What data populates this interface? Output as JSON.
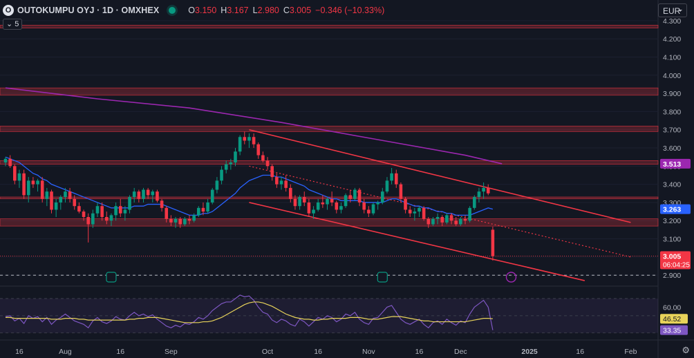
{
  "header": {
    "logo_glyph": "O",
    "symbol": "OUTOKUMPU OYJ · 1D · OMXHEX",
    "open_label": "O",
    "open": "3.150",
    "high_label": "H",
    "high": "3.167",
    "low_label": "L",
    "low": "2.980",
    "close_label": "C",
    "close": "3.005",
    "change": "−0.346 (−10.33%)"
  },
  "collapse_count": "5",
  "currency": "EUR",
  "settings_icon": "gear-icon",
  "colors": {
    "up": "#089981",
    "down": "#f23645",
    "ma": "#2962ff",
    "ma200": "#9c27b0",
    "rsi": "#7e57c2",
    "rsi_ma": "#e8d35a"
  },
  "chart_data": {
    "type": "candlestick",
    "y_ticks": [
      "4.300",
      "4.200",
      "4.100",
      "4.000",
      "3.900",
      "3.800",
      "3.700",
      "3.600",
      "3.500",
      "3.400",
      "3.300",
      "3.200",
      "3.100",
      "3.000",
      "2.900"
    ],
    "x_ticks": [
      {
        "label": "16",
        "i": 3
      },
      {
        "label": "Aug",
        "i": 13
      },
      {
        "label": "16",
        "i": 25
      },
      {
        "label": "Sep",
        "i": 36
      },
      {
        "label": "Oct",
        "i": 57
      },
      {
        "label": "16",
        "i": 68
      },
      {
        "label": "Nov",
        "i": 79
      },
      {
        "label": "16",
        "i": 90
      },
      {
        "label": "Dec",
        "i": 99
      },
      {
        "label": "2025",
        "i": 114
      },
      {
        "label": "16",
        "i": 125
      },
      {
        "label": "Feb",
        "i": 136
      }
    ],
    "price_labels": [
      {
        "value": 3.513,
        "text": "3.513",
        "color": "#9c27b0"
      },
      {
        "value": 3.263,
        "text": "3.263",
        "color": "#2962ff"
      },
      {
        "value": 3.005,
        "text": "3.005",
        "sub": "06:04:25",
        "color": "#f23645"
      }
    ],
    "rsi_labels": [
      {
        "value": 60,
        "text": "60.00",
        "color": "#131722"
      },
      {
        "value": 46.52,
        "text": "46.52",
        "color": "#e8d35a"
      },
      {
        "value": 33.35,
        "text": "33.35",
        "color": "#7e57c2"
      }
    ],
    "zones": [
      [
        4.26,
        4.275
      ],
      [
        3.89,
        3.93
      ],
      [
        3.69,
        3.72
      ],
      [
        3.51,
        3.53
      ],
      [
        3.32,
        3.33
      ],
      [
        3.17,
        3.21
      ]
    ],
    "candles": [
      [
        3.52,
        3.55,
        3.5,
        3.54
      ],
      [
        3.54,
        3.56,
        3.49,
        3.5
      ],
      [
        3.5,
        3.51,
        3.4,
        3.42
      ],
      [
        3.42,
        3.48,
        3.38,
        3.46
      ],
      [
        3.46,
        3.48,
        3.32,
        3.34
      ],
      [
        3.34,
        3.44,
        3.3,
        3.42
      ],
      [
        3.42,
        3.44,
        3.38,
        3.4
      ],
      [
        3.4,
        3.43,
        3.36,
        3.42
      ],
      [
        3.42,
        3.44,
        3.3,
        3.32
      ],
      [
        3.32,
        3.38,
        3.28,
        3.36
      ],
      [
        3.36,
        3.37,
        3.24,
        3.26
      ],
      [
        3.26,
        3.32,
        3.22,
        3.3
      ],
      [
        3.3,
        3.34,
        3.26,
        3.33
      ],
      [
        3.33,
        3.38,
        3.3,
        3.36
      ],
      [
        3.36,
        3.38,
        3.3,
        3.32
      ],
      [
        3.32,
        3.34,
        3.26,
        3.28
      ],
      [
        3.28,
        3.3,
        3.24,
        3.25
      ],
      [
        3.25,
        3.26,
        3.2,
        3.22
      ],
      [
        3.22,
        3.24,
        3.08,
        3.18
      ],
      [
        3.18,
        3.26,
        3.16,
        3.24
      ],
      [
        3.24,
        3.3,
        3.22,
        3.28
      ],
      [
        3.28,
        3.3,
        3.2,
        3.22
      ],
      [
        3.22,
        3.25,
        3.18,
        3.2
      ],
      [
        3.2,
        3.24,
        3.17,
        3.23
      ],
      [
        3.23,
        3.3,
        3.2,
        3.28
      ],
      [
        3.28,
        3.32,
        3.22,
        3.24
      ],
      [
        3.24,
        3.28,
        3.2,
        3.26
      ],
      [
        3.26,
        3.34,
        3.24,
        3.33
      ],
      [
        3.33,
        3.38,
        3.3,
        3.36
      ],
      [
        3.36,
        3.37,
        3.3,
        3.32
      ],
      [
        3.32,
        3.38,
        3.3,
        3.37
      ],
      [
        3.37,
        3.38,
        3.32,
        3.34
      ],
      [
        3.34,
        3.37,
        3.3,
        3.36
      ],
      [
        3.36,
        3.37,
        3.3,
        3.31
      ],
      [
        3.31,
        3.32,
        3.25,
        3.27
      ],
      [
        3.27,
        3.28,
        3.19,
        3.21
      ],
      [
        3.21,
        3.23,
        3.17,
        3.19
      ],
      [
        3.19,
        3.22,
        3.16,
        3.21
      ],
      [
        3.21,
        3.22,
        3.16,
        3.18
      ],
      [
        3.18,
        3.22,
        3.17,
        3.21
      ],
      [
        3.21,
        3.23,
        3.18,
        3.2
      ],
      [
        3.2,
        3.24,
        3.19,
        3.23
      ],
      [
        3.23,
        3.28,
        3.22,
        3.27
      ],
      [
        3.27,
        3.3,
        3.23,
        3.25
      ],
      [
        3.25,
        3.32,
        3.24,
        3.3
      ],
      [
        3.3,
        3.38,
        3.29,
        3.37
      ],
      [
        3.37,
        3.44,
        3.35,
        3.42
      ],
      [
        3.42,
        3.5,
        3.4,
        3.48
      ],
      [
        3.48,
        3.53,
        3.46,
        3.51
      ],
      [
        3.51,
        3.54,
        3.48,
        3.52
      ],
      [
        3.52,
        3.6,
        3.5,
        3.58
      ],
      [
        3.58,
        3.67,
        3.56,
        3.66
      ],
      [
        3.66,
        3.69,
        3.62,
        3.64
      ],
      [
        3.64,
        3.68,
        3.6,
        3.66
      ],
      [
        3.66,
        3.68,
        3.6,
        3.62
      ],
      [
        3.62,
        3.63,
        3.54,
        3.56
      ],
      [
        3.56,
        3.58,
        3.52,
        3.53
      ],
      [
        3.53,
        3.55,
        3.48,
        3.5
      ],
      [
        3.5,
        3.51,
        3.42,
        3.44
      ],
      [
        3.44,
        3.46,
        3.38,
        3.4
      ],
      [
        3.4,
        3.44,
        3.37,
        3.42
      ],
      [
        3.42,
        3.45,
        3.36,
        3.38
      ],
      [
        3.38,
        3.4,
        3.3,
        3.32
      ],
      [
        3.32,
        3.34,
        3.26,
        3.28
      ],
      [
        3.28,
        3.34,
        3.26,
        3.33
      ],
      [
        3.33,
        3.36,
        3.28,
        3.3
      ],
      [
        3.3,
        3.32,
        3.22,
        3.24
      ],
      [
        3.24,
        3.28,
        3.21,
        3.26
      ],
      [
        3.26,
        3.32,
        3.25,
        3.3
      ],
      [
        3.3,
        3.34,
        3.27,
        3.29
      ],
      [
        3.29,
        3.33,
        3.26,
        3.32
      ],
      [
        3.32,
        3.36,
        3.28,
        3.3
      ],
      [
        3.3,
        3.31,
        3.24,
        3.26
      ],
      [
        3.26,
        3.3,
        3.24,
        3.28
      ],
      [
        3.28,
        3.35,
        3.27,
        3.34
      ],
      [
        3.34,
        3.37,
        3.3,
        3.32
      ],
      [
        3.32,
        3.38,
        3.31,
        3.37
      ],
      [
        3.37,
        3.38,
        3.28,
        3.3
      ],
      [
        3.3,
        3.32,
        3.24,
        3.26
      ],
      [
        3.26,
        3.28,
        3.22,
        3.24
      ],
      [
        3.24,
        3.3,
        3.23,
        3.29
      ],
      [
        3.29,
        3.31,
        3.26,
        3.3
      ],
      [
        3.3,
        3.38,
        3.29,
        3.36
      ],
      [
        3.36,
        3.44,
        3.35,
        3.42
      ],
      [
        3.42,
        3.49,
        3.4,
        3.46
      ],
      [
        3.46,
        3.48,
        3.38,
        3.4
      ],
      [
        3.4,
        3.41,
        3.3,
        3.32
      ],
      [
        3.32,
        3.33,
        3.24,
        3.26
      ],
      [
        3.26,
        3.28,
        3.22,
        3.24
      ],
      [
        3.24,
        3.27,
        3.2,
        3.25
      ],
      [
        3.25,
        3.28,
        3.22,
        3.27
      ],
      [
        3.27,
        3.28,
        3.2,
        3.21
      ],
      [
        3.21,
        3.22,
        3.16,
        3.18
      ],
      [
        3.18,
        3.22,
        3.17,
        3.21
      ],
      [
        3.21,
        3.24,
        3.18,
        3.22
      ],
      [
        3.22,
        3.23,
        3.17,
        3.19
      ],
      [
        3.19,
        3.24,
        3.18,
        3.23
      ],
      [
        3.23,
        3.24,
        3.18,
        3.2
      ],
      [
        3.2,
        3.22,
        3.17,
        3.18
      ],
      [
        3.18,
        3.22,
        3.17,
        3.21
      ],
      [
        3.21,
        3.23,
        3.18,
        3.2
      ],
      [
        3.2,
        3.28,
        3.19,
        3.27
      ],
      [
        3.27,
        3.34,
        3.26,
        3.33
      ],
      [
        3.33,
        3.38,
        3.3,
        3.36
      ],
      [
        3.36,
        3.41,
        3.32,
        3.38
      ],
      [
        3.38,
        3.4,
        3.34,
        3.35
      ],
      [
        3.15,
        3.167,
        2.98,
        3.005
      ]
    ],
    "ma": [
      3.55,
      3.54,
      3.53,
      3.52,
      3.5,
      3.48,
      3.46,
      3.45,
      3.43,
      3.42,
      3.4,
      3.39,
      3.38,
      3.37,
      3.36,
      3.35,
      3.34,
      3.33,
      3.32,
      3.31,
      3.3,
      3.29,
      3.28,
      3.27,
      3.27,
      3.27,
      3.27,
      3.27,
      3.28,
      3.28,
      3.28,
      3.29,
      3.29,
      3.29,
      3.29,
      3.28,
      3.27,
      3.26,
      3.25,
      3.24,
      3.23,
      3.23,
      3.23,
      3.24,
      3.24,
      3.25,
      3.27,
      3.29,
      3.31,
      3.33,
      3.35,
      3.38,
      3.4,
      3.42,
      3.43,
      3.44,
      3.45,
      3.45,
      3.45,
      3.44,
      3.44,
      3.43,
      3.42,
      3.41,
      3.4,
      3.39,
      3.37,
      3.36,
      3.35,
      3.34,
      3.33,
      3.32,
      3.32,
      3.31,
      3.31,
      3.31,
      3.31,
      3.31,
      3.3,
      3.3,
      3.3,
      3.3,
      3.3,
      3.31,
      3.32,
      3.32,
      3.31,
      3.3,
      3.29,
      3.28,
      3.28,
      3.27,
      3.27,
      3.26,
      3.25,
      3.25,
      3.24,
      3.24,
      3.23,
      3.23,
      3.23,
      3.23,
      3.24,
      3.25,
      3.26,
      3.27,
      3.263
    ],
    "ma200": [
      [
        0,
        3.93
      ],
      [
        20,
        3.87
      ],
      [
        40,
        3.82
      ],
      [
        60,
        3.74
      ],
      [
        80,
        3.65
      ],
      [
        100,
        3.56
      ],
      [
        108,
        3.513
      ]
    ],
    "channel_upper": [
      [
        53,
        3.7
      ],
      [
        136,
        3.19
      ]
    ],
    "channel_lower": [
      [
        53,
        3.3
      ],
      [
        126,
        2.87
      ]
    ],
    "channel_mid": [
      [
        53,
        3.5
      ],
      [
        136,
        3.0
      ]
    ],
    "rsi": [
      49,
      50,
      44,
      47,
      41,
      50,
      47,
      49,
      43,
      48,
      40,
      45,
      48,
      52,
      48,
      44,
      42,
      40,
      36,
      44,
      48,
      43,
      41,
      44,
      49,
      46,
      45,
      50,
      54,
      50,
      52,
      49,
      51,
      46,
      42,
      38,
      36,
      39,
      37,
      41,
      40,
      43,
      48,
      46,
      50,
      56,
      60,
      64,
      66,
      66,
      70,
      74,
      72,
      73,
      68,
      60,
      54,
      52,
      45,
      42,
      46,
      44,
      40,
      38,
      46,
      43,
      38,
      43,
      48,
      46,
      50,
      48,
      43,
      46,
      52,
      50,
      54,
      46,
      42,
      40,
      47,
      48,
      54,
      60,
      62,
      54,
      46,
      42,
      40,
      43,
      46,
      40,
      36,
      42,
      44,
      40,
      46,
      42,
      39,
      44,
      42,
      52,
      60,
      64,
      68,
      60,
      33.35
    ],
    "rsi_ma": [
      48,
      48,
      47,
      47,
      47,
      47,
      47,
      47,
      47,
      47,
      46,
      46,
      46,
      47,
      47,
      47,
      46,
      46,
      45,
      45,
      45,
      45,
      45,
      45,
      45,
      45,
      45,
      46,
      46,
      47,
      47,
      48,
      48,
      48,
      47,
      46,
      45,
      44,
      43,
      42,
      42,
      42,
      42,
      43,
      43,
      44,
      46,
      48,
      51,
      54,
      57,
      60,
      63,
      65,
      66,
      66,
      65,
      63,
      61,
      58,
      55,
      52,
      50,
      48,
      47,
      46,
      46,
      45,
      45,
      46,
      46,
      47,
      47,
      47,
      47,
      48,
      48,
      48,
      47,
      46,
      46,
      46,
      47,
      48,
      49,
      49,
      49,
      48,
      47,
      46,
      45,
      44,
      44,
      43,
      43,
      43,
      43,
      43,
      43,
      43,
      43,
      44,
      45,
      46,
      47,
      47,
      46.52
    ],
    "rsi_levels": [
      70,
      50,
      30
    ],
    "dashed_price": 2.9,
    "price_range": [
      2.855,
      4.33
    ],
    "rsi_range": [
      25,
      78
    ]
  }
}
